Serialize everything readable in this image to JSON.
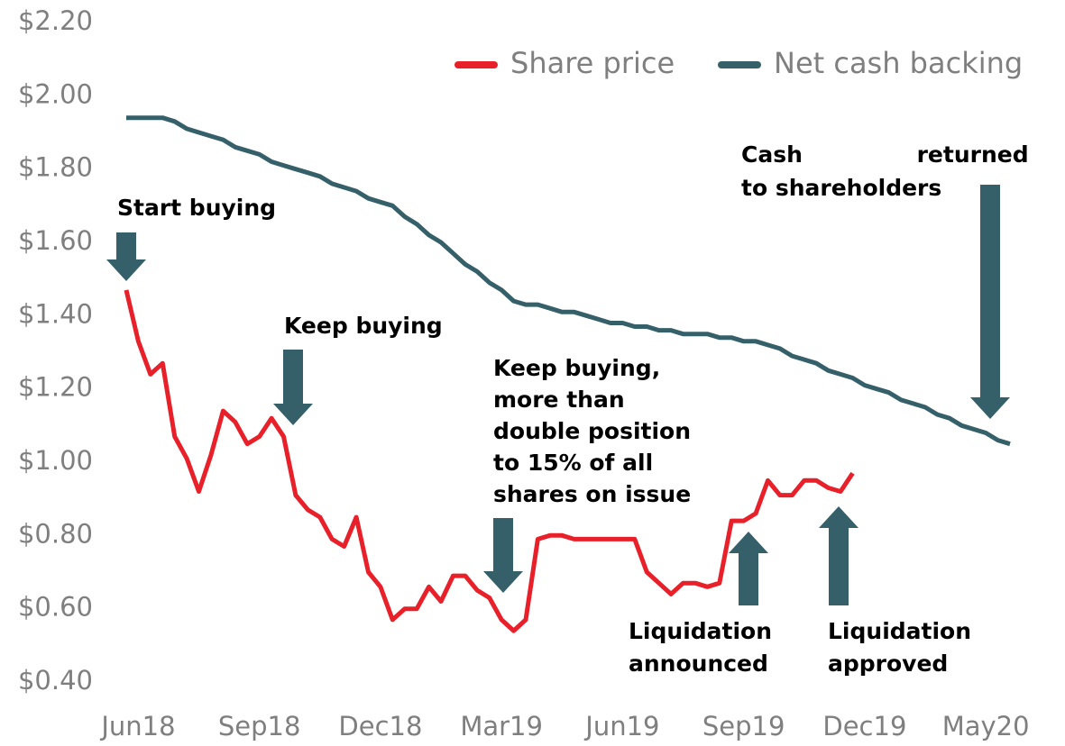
{
  "chart_data": {
    "type": "line",
    "categories": [
      null,
      "Jun18",
      null,
      null,
      null,
      null,
      null,
      null,
      null,
      null,
      null,
      "Sep18",
      null,
      null,
      null,
      null,
      null,
      null,
      null,
      null,
      null,
      "Dec18",
      null,
      null,
      null,
      null,
      null,
      null,
      null,
      null,
      null,
      "Mar19",
      null,
      null,
      null,
      null,
      null,
      null,
      null,
      null,
      null,
      "Jun19",
      null,
      null,
      null,
      null,
      null,
      null,
      null,
      null,
      null,
      "Sep19",
      null,
      null,
      null,
      null,
      null,
      null,
      null,
      null,
      null,
      "Dec19",
      null,
      null,
      null,
      null,
      null,
      null,
      null,
      null,
      null,
      "May20",
      null,
      null
    ],
    "series": [
      {
        "name": "Share price",
        "color": "#e8202a",
        "values": [
          1.47,
          1.33,
          1.24,
          1.27,
          1.07,
          1.01,
          0.92,
          1.02,
          1.14,
          1.11,
          1.05,
          1.07,
          1.12,
          1.07,
          0.91,
          0.87,
          0.85,
          0.79,
          0.77,
          0.85,
          0.7,
          0.66,
          0.57,
          0.6,
          0.6,
          0.66,
          0.62,
          0.69,
          0.69,
          0.65,
          0.63,
          0.57,
          0.54,
          0.57,
          0.79,
          0.8,
          0.8,
          0.79,
          0.79,
          0.79,
          0.79,
          0.79,
          0.79,
          0.7,
          0.67,
          0.64,
          0.67,
          0.67,
          0.66,
          0.67,
          0.84,
          0.84,
          0.86,
          0.95,
          0.91,
          0.91,
          0.95,
          0.95,
          0.93,
          0.92,
          0.97,
          null,
          null,
          null,
          null,
          null,
          null,
          null,
          null,
          null,
          null,
          null,
          null,
          null
        ]
      },
      {
        "name": "Net cash backing",
        "color": "#35606a",
        "values": [
          1.94,
          1.94,
          1.94,
          1.94,
          1.93,
          1.91,
          1.9,
          1.89,
          1.88,
          1.86,
          1.85,
          1.84,
          1.82,
          1.81,
          1.8,
          1.79,
          1.78,
          1.76,
          1.75,
          1.74,
          1.72,
          1.71,
          1.7,
          1.67,
          1.65,
          1.62,
          1.6,
          1.57,
          1.54,
          1.52,
          1.49,
          1.47,
          1.44,
          1.43,
          1.43,
          1.42,
          1.41,
          1.41,
          1.4,
          1.39,
          1.38,
          1.38,
          1.37,
          1.37,
          1.36,
          1.36,
          1.35,
          1.35,
          1.35,
          1.34,
          1.34,
          1.33,
          1.33,
          1.32,
          1.31,
          1.29,
          1.28,
          1.27,
          1.25,
          1.24,
          1.23,
          1.21,
          1.2,
          1.19,
          1.17,
          1.16,
          1.15,
          1.13,
          1.12,
          1.1,
          1.09,
          1.08,
          1.06,
          1.05
        ]
      }
    ],
    "ylim": [
      0.4,
      2.2
    ],
    "yticks": [
      {
        "value": 0.4,
        "label": "$0.40"
      },
      {
        "value": 0.6,
        "label": "$0.60"
      },
      {
        "value": 0.8,
        "label": "$0.80"
      },
      {
        "value": 1.0,
        "label": "$1.00"
      },
      {
        "value": 1.2,
        "label": "$1.20"
      },
      {
        "value": 1.4,
        "label": "$1.40"
      },
      {
        "value": 1.6,
        "label": "$1.60"
      },
      {
        "value": 1.8,
        "label": "$1.80"
      },
      {
        "value": 2.0,
        "label": "$2.00"
      },
      {
        "value": 2.2,
        "label": "$2.20"
      }
    ],
    "grid": false,
    "legend": "top-right",
    "annotations": [
      {
        "lines": [
          "Start buying"
        ]
      },
      {
        "lines": [
          "Keep buying"
        ]
      },
      {
        "lines": [
          "Keep buying,",
          "more than",
          "double position",
          "to 15% of all",
          "shares on issue"
        ]
      },
      {
        "lines": [
          "Liquidation",
          "announced"
        ]
      },
      {
        "lines": [
          "Liquidation",
          "approved"
        ]
      },
      {
        "lines": [
          "Cash returned",
          "to shareholders"
        ]
      }
    ]
  }
}
